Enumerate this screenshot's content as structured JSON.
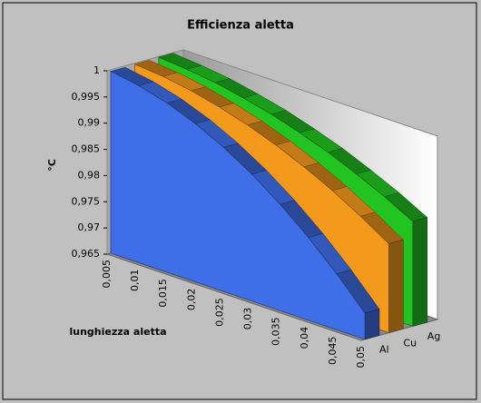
{
  "chart_data": {
    "type": "area3d",
    "title": "Efficienza aletta",
    "y_label": "°C",
    "x_label": "lunghiezza aletta",
    "categories": [
      "0,005",
      "0,01",
      "0,015",
      "0,02",
      "0,025",
      "0,03",
      "0,035",
      "0,04",
      "0,045",
      "0,05"
    ],
    "series": [
      {
        "name": "Al",
        "color": "#3f6fe8",
        "values": [
          0.9997,
          0.9988,
          0.9973,
          0.9952,
          0.9925,
          0.9892,
          0.9853,
          0.9808,
          0.9757,
          0.97
        ]
      },
      {
        "name": "Cu",
        "color": "#f39a1c",
        "values": [
          0.9998,
          0.9993,
          0.9984,
          0.9971,
          0.9955,
          0.9935,
          0.9912,
          0.9885,
          0.9854,
          0.982
        ]
      },
      {
        "name": "Ag",
        "color": "#22c422",
        "values": [
          0.9999,
          0.9994,
          0.9987,
          0.9976,
          0.9963,
          0.9946,
          0.9927,
          0.9904,
          0.9879,
          0.985
        ]
      }
    ],
    "ylim": [
      0.965,
      1
    ],
    "yticks": [
      {
        "value": 0.965,
        "label": "0,965"
      },
      {
        "value": 0.97,
        "label": "0,97"
      },
      {
        "value": 0.975,
        "label": "0,975"
      },
      {
        "value": 0.98,
        "label": "0,98"
      },
      {
        "value": 0.985,
        "label": "0,985"
      },
      {
        "value": 0.99,
        "label": "0,99"
      },
      {
        "value": 0.995,
        "label": "0,995"
      },
      1
    ],
    "grid": false
  }
}
